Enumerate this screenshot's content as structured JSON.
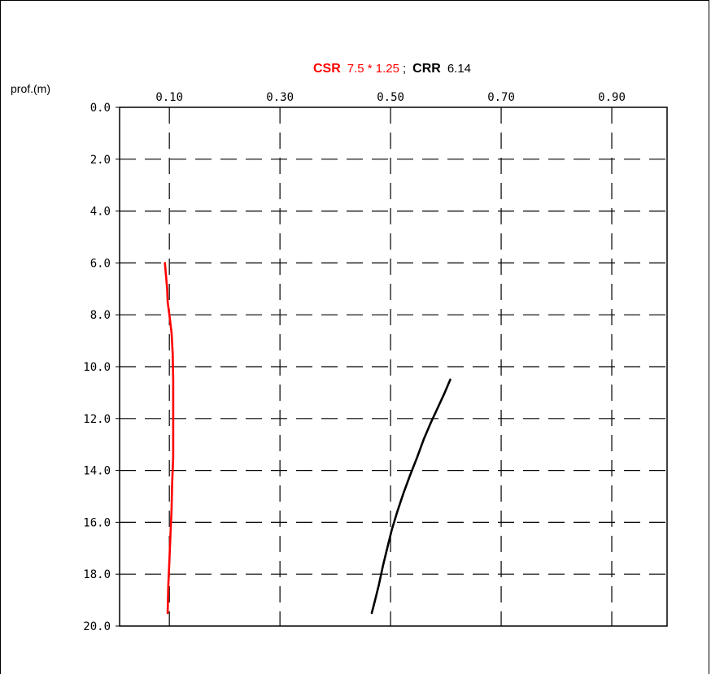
{
  "chart_data": {
    "type": "line",
    "title": {
      "csr_label": "CSR",
      "csr_detail": "7.5 * 1.25",
      "separator": ";",
      "crr_label": "CRR",
      "crr_detail": "6.14"
    },
    "ylabel": "prof.(m)",
    "xlabel": "",
    "x_ticks": [
      "0.10",
      "0.30",
      "0.50",
      "0.70",
      "0.90"
    ],
    "x_tick_values": [
      0.1,
      0.3,
      0.5,
      0.7,
      0.9
    ],
    "y_ticks": [
      "0.0",
      "2.0",
      "4.0",
      "6.0",
      "8.0",
      "10.0",
      "12.0",
      "14.0",
      "16.0",
      "18.0",
      "20.0"
    ],
    "y_tick_values": [
      0,
      2,
      4,
      6,
      8,
      10,
      12,
      14,
      16,
      18,
      20
    ],
    "xlim": [
      0.01,
      1.0
    ],
    "ylim": [
      0,
      20
    ],
    "y_inverted": true,
    "grid": true,
    "grid_style": "dashed",
    "series": [
      {
        "key": "csr",
        "color": "#ff0000",
        "points": [
          [
            0.092,
            6.0
          ],
          [
            0.094,
            6.5
          ],
          [
            0.096,
            7.0
          ],
          [
            0.097,
            7.5
          ],
          [
            0.1,
            8.0
          ],
          [
            0.104,
            8.7
          ],
          [
            0.106,
            9.5
          ],
          [
            0.107,
            10.5
          ],
          [
            0.107,
            11.5
          ],
          [
            0.107,
            12.5
          ],
          [
            0.107,
            13.5
          ],
          [
            0.105,
            14.5
          ],
          [
            0.104,
            15.5
          ],
          [
            0.102,
            16.5
          ],
          [
            0.1,
            17.5
          ],
          [
            0.098,
            18.5
          ],
          [
            0.097,
            19.5
          ]
        ]
      },
      {
        "key": "crr",
        "color": "#000000",
        "points": [
          [
            0.608,
            10.5
          ],
          [
            0.598,
            11.0
          ],
          [
            0.585,
            11.6
          ],
          [
            0.572,
            12.2
          ],
          [
            0.56,
            12.8
          ],
          [
            0.548,
            13.5
          ],
          [
            0.535,
            14.2
          ],
          [
            0.523,
            14.9
          ],
          [
            0.512,
            15.6
          ],
          [
            0.502,
            16.3
          ],
          [
            0.494,
            17.0
          ],
          [
            0.486,
            17.7
          ],
          [
            0.479,
            18.4
          ],
          [
            0.472,
            19.0
          ],
          [
            0.466,
            19.5
          ]
        ]
      }
    ],
    "colors": {
      "csr_title": "#ff0000",
      "crr_title": "#000000",
      "grid": "#000000"
    }
  }
}
